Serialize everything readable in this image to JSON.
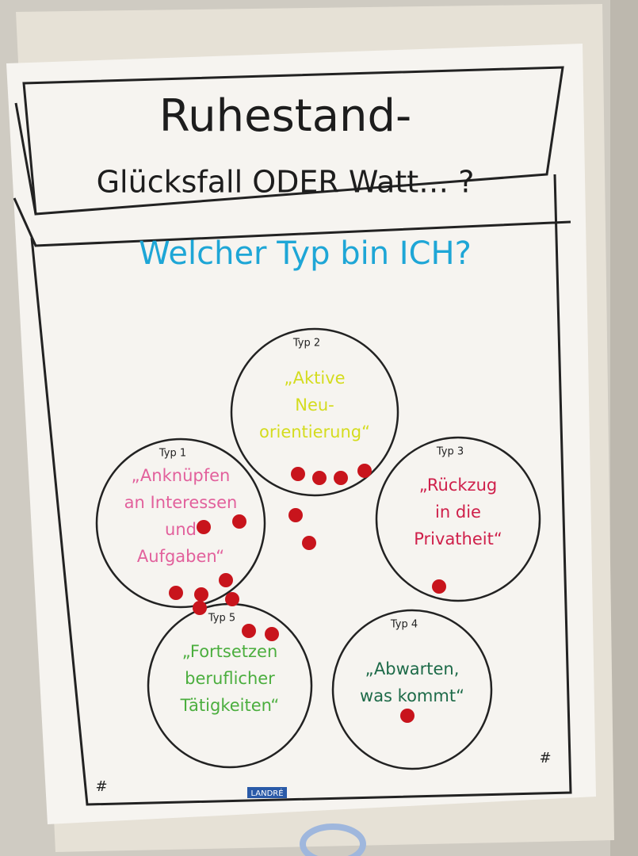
{
  "header": {
    "title": "Ruhestand-",
    "subtitle": "Glücksfall ODER Watt… ?"
  },
  "question": "Welcher Typ bin ICH?",
  "types": [
    {
      "label": "Typ 1",
      "text": [
        "„Anknüpfen",
        "an Interessen",
        "und",
        "Aufgaben“"
      ]
    },
    {
      "label": "Typ 2",
      "text": [
        "„Aktive",
        "Neu-",
        "orientierung“"
      ]
    },
    {
      "label": "Typ 3",
      "text": [
        "„Rückzug",
        "in die",
        "Privatheit“"
      ]
    },
    {
      "label": "Typ 4",
      "text": [
        "„Abwarten,",
        "was kommt“"
      ]
    },
    {
      "label": "Typ 5",
      "text": [
        "„Fortsetzen",
        "beruflicher",
        "Tätigkeiten“"
      ]
    }
  ],
  "corner_marks": [
    "#",
    "#"
  ],
  "footer_logo": "LANDRÉ"
}
